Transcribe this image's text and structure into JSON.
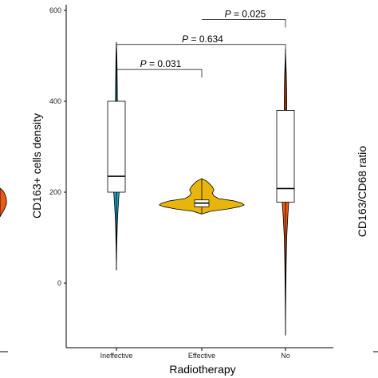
{
  "chart_data": {
    "type": "violin",
    "xlabel": "Radiotherapy",
    "ylabel": "CD163+ cells density",
    "ylim": [
      -135,
      615
    ],
    "yticks": [
      0,
      200,
      400,
      600
    ],
    "categories": [
      "Ineffective",
      "Effective",
      "No"
    ],
    "series": [
      {
        "category": "Ineffective",
        "color": "#1aa3c4",
        "min": 28,
        "max": 530,
        "q1": 200,
        "median": 235,
        "q3": 400,
        "density": [
          [
            28,
            0
          ],
          [
            80,
            0.8
          ],
          [
            130,
            2
          ],
          [
            160,
            3.5
          ],
          [
            190,
            5.5
          ],
          [
            215,
            7.5
          ],
          [
            240,
            7.5
          ],
          [
            265,
            6
          ],
          [
            300,
            4
          ],
          [
            350,
            2.7
          ],
          [
            400,
            2.2
          ],
          [
            440,
            1.8
          ],
          [
            470,
            1.4
          ],
          [
            495,
            1
          ],
          [
            515,
            0.5
          ],
          [
            530,
            0
          ]
        ]
      },
      {
        "category": "Effective",
        "color": "#e8b50d",
        "min": 152,
        "max": 230,
        "q1": 168,
        "median": 176,
        "q3": 183,
        "density": [
          [
            152,
            0
          ],
          [
            158,
            12
          ],
          [
            163,
            34
          ],
          [
            168,
            50
          ],
          [
            172,
            56
          ],
          [
            176,
            53
          ],
          [
            181,
            42
          ],
          [
            186,
            22
          ],
          [
            192,
            16
          ],
          [
            198,
            14
          ],
          [
            205,
            16
          ],
          [
            212,
            14
          ],
          [
            219,
            10
          ],
          [
            225,
            6
          ],
          [
            230,
            0
          ]
        ]
      },
      {
        "category": "No",
        "color": "#e85a17",
        "min": -115,
        "max": 515,
        "q1": 178,
        "median": 208,
        "q3": 380,
        "density": [
          [
            -115,
            0
          ],
          [
            -40,
            0.6
          ],
          [
            40,
            1.5
          ],
          [
            100,
            2.8
          ],
          [
            150,
            5.5
          ],
          [
            185,
            8
          ],
          [
            205,
            9
          ],
          [
            225,
            8
          ],
          [
            260,
            5.5
          ],
          [
            310,
            3.5
          ],
          [
            360,
            3
          ],
          [
            400,
            3
          ],
          [
            430,
            2.5
          ],
          [
            460,
            1.8
          ],
          [
            490,
            0.8
          ],
          [
            515,
            0
          ]
        ]
      }
    ],
    "comparisons": [
      {
        "from": "Ineffective",
        "to": "Effective",
        "label": "P = 0.031",
        "y": 470
      },
      {
        "from": "Ineffective",
        "to": "No",
        "label": "P = 0.634",
        "y": 525
      },
      {
        "from": "Effective",
        "to": "No",
        "label": "P = 0.025",
        "y": 580
      }
    ]
  },
  "right_panel": {
    "ylabel": "CD163/CD68 ratio"
  }
}
